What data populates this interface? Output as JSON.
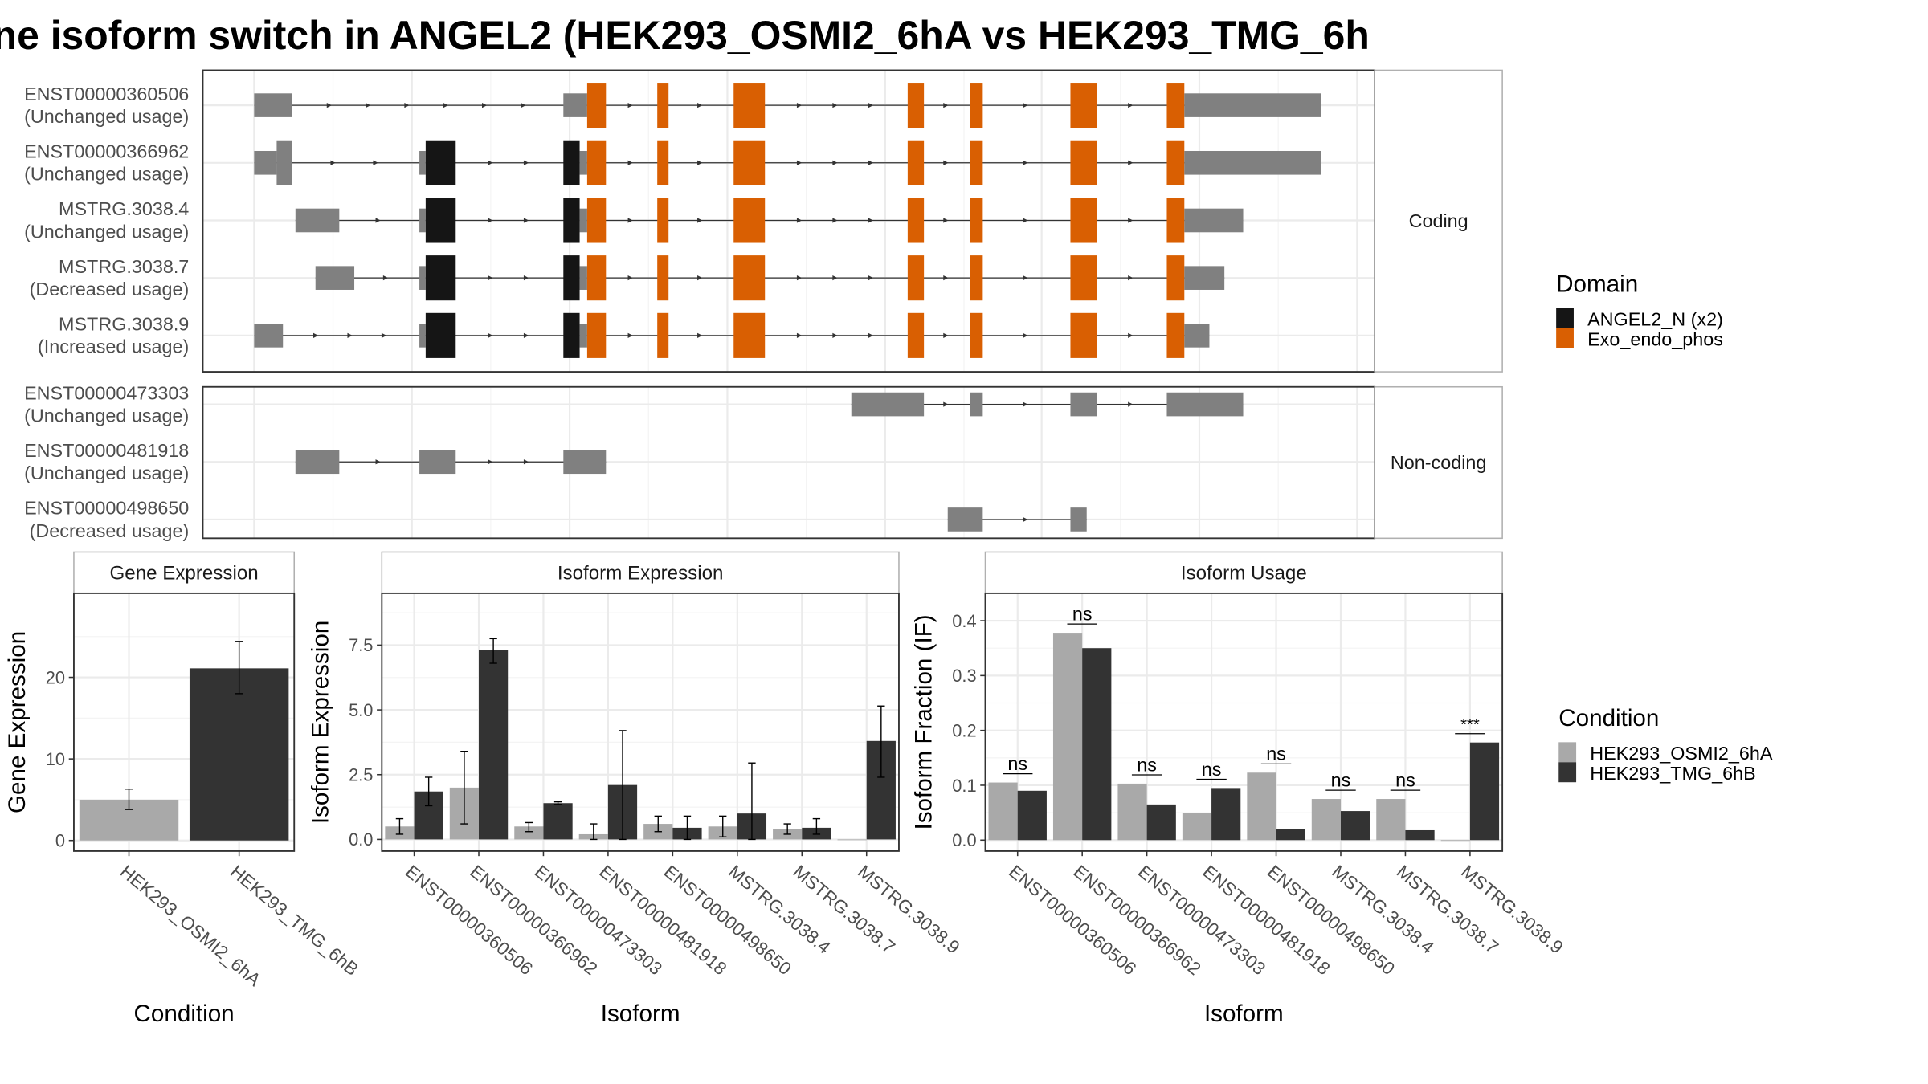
{
  "title": "ne isoform switch in ANGEL2 (HEK293_OSMI2_6hA vs HEK293_TMG_6h",
  "colors": {
    "utr": "#808080",
    "angel2": "#151515",
    "exo": "#D95F02",
    "cond1": "#A9A9A9",
    "cond2": "#333333",
    "grid": "#EBEBEB",
    "panel_border": "#333333",
    "strip_border": "#B0B0B0"
  },
  "structure": {
    "facets": [
      "Coding",
      "Non-coding"
    ],
    "coding": [
      {
        "id": "ENST00000360506",
        "usage": "(Unchanged usage)"
      },
      {
        "id": "ENST00000366962",
        "usage": "(Unchanged usage)"
      },
      {
        "id": "MSTRG.3038.4",
        "usage": "(Unchanged usage)"
      },
      {
        "id": "MSTRG.3038.7",
        "usage": "(Decreased usage)"
      },
      {
        "id": "MSTRG.3038.9",
        "usage": "(Increased usage)"
      }
    ],
    "noncoding": [
      {
        "id": "ENST00000473303",
        "usage": "(Unchanged usage)"
      },
      {
        "id": "ENST00000481918",
        "usage": "(Unchanged usage)"
      },
      {
        "id": "ENST00000498650",
        "usage": "(Decreased usage)"
      }
    ]
  },
  "legend_domain": {
    "title": "Domain",
    "items": [
      {
        "label": "ANGEL2_N (x2)",
        "color_key": "angel2"
      },
      {
        "label": "Exo_endo_phos",
        "color_key": "exo"
      }
    ]
  },
  "legend_condition": {
    "title": "Condition",
    "items": [
      {
        "label": "HEK293_OSMI2_6hA",
        "color_key": "cond1"
      },
      {
        "label": "HEK293_TMG_6hB",
        "color_key": "cond2"
      }
    ]
  },
  "chart_data": [
    {
      "type": "bar",
      "title": "Gene Expression",
      "xlabel": "Condition",
      "ylabel": "Gene Expression",
      "categories": [
        "HEK293_OSMI2_6hA",
        "HEK293_TMG_6hB"
      ],
      "values": [
        5.0,
        21.1
      ],
      "error_low": [
        3.8,
        18.0
      ],
      "error_high": [
        6.3,
        24.4
      ],
      "ylim": [
        -1.3,
        30.3
      ],
      "yticks": [
        "0",
        "10",
        "20"
      ],
      "ytick_values": [
        0,
        10,
        20
      ]
    },
    {
      "type": "bar",
      "title": "Isoform Expression",
      "xlabel": "Isoform",
      "ylabel": "Isoform Expression",
      "categories": [
        "ENST00000360506",
        "ENST00000366962",
        "ENST00000473303",
        "ENST00000481918",
        "ENST00000498650",
        "MSTRG.3038.4",
        "MSTRG.3038.7",
        "MSTRG.3038.9"
      ],
      "series": [
        {
          "name": "HEK293_OSMI2_6hA",
          "values": [
            0.5,
            2.0,
            0.5,
            0.2,
            0.6,
            0.5,
            0.4,
            0.0
          ],
          "error_low": [
            0.2,
            0.6,
            0.3,
            0.0,
            0.3,
            0.1,
            0.2,
            0.0
          ],
          "error_high": [
            0.8,
            3.4,
            0.65,
            0.6,
            0.9,
            0.9,
            0.6,
            0.0
          ]
        },
        {
          "name": "HEK293_TMG_6hB",
          "values": [
            1.85,
            7.3,
            1.4,
            2.1,
            0.45,
            1.0,
            0.45,
            3.8
          ],
          "error_low": [
            1.3,
            6.8,
            1.35,
            0.0,
            0.0,
            0.0,
            0.2,
            2.4
          ],
          "error_high": [
            2.4,
            7.75,
            1.45,
            4.2,
            0.9,
            2.95,
            0.8,
            5.15
          ]
        }
      ],
      "ylim": [
        -0.45,
        9.5
      ],
      "yticks": [
        "0.0",
        "2.5",
        "5.0",
        "7.5"
      ],
      "ytick_values": [
        0,
        2.5,
        5.0,
        7.5
      ]
    },
    {
      "type": "bar",
      "title": "Isoform Usage",
      "xlabel": "Isoform",
      "ylabel": "Isoform Fraction (IF)",
      "categories": [
        "ENST00000360506",
        "ENST00000366962",
        "ENST00000473303",
        "ENST00000481918",
        "ENST00000498650",
        "MSTRG.3038.4",
        "MSTRG.3038.7",
        "MSTRG.3038.9"
      ],
      "series": [
        {
          "name": "HEK293_OSMI2_6hA",
          "values": [
            0.105,
            0.378,
            0.103,
            0.05,
            0.123,
            0.075,
            0.075,
            0.0
          ]
        },
        {
          "name": "HEK293_TMG_6hB",
          "values": [
            0.09,
            0.35,
            0.065,
            0.095,
            0.02,
            0.053,
            0.018,
            0.178
          ]
        }
      ],
      "significance": [
        "ns",
        "ns",
        "ns",
        "ns",
        "ns",
        "ns",
        "ns",
        "***"
      ],
      "ylim": [
        -0.02,
        0.45
      ],
      "yticks": [
        "0.0",
        "0.1",
        "0.2",
        "0.3",
        "0.4"
      ],
      "ytick_values": [
        0,
        0.1,
        0.2,
        0.3,
        0.4
      ]
    }
  ]
}
